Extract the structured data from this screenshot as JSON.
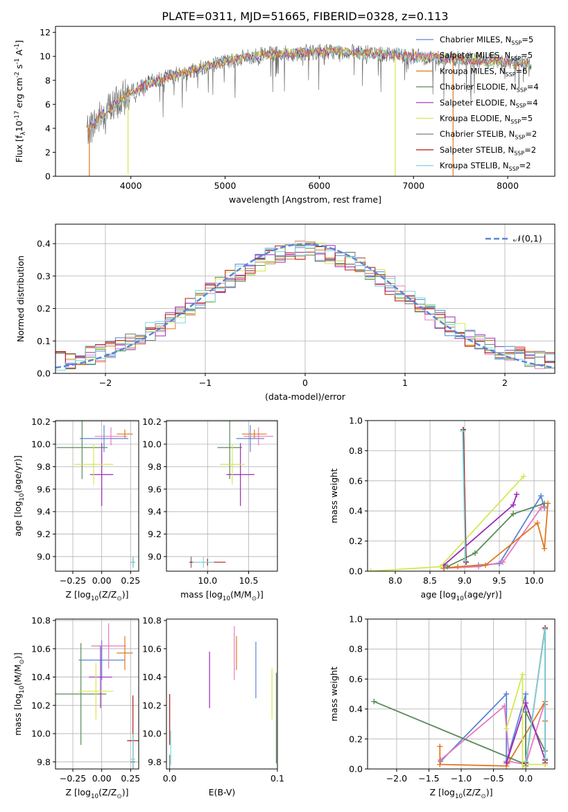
{
  "title": "PLATE=0311, MJD=51665, FIBERID=0328, z=0.113",
  "colors": {
    "chabrier_miles": "#5b84d6",
    "salpeter_miles": "#e878c0",
    "kroupa_miles": "#e07820",
    "chabrier_elodie": "#5a8a5a",
    "salpeter_elodie": "#9a28b8",
    "kroupa_elodie": "#d4e850",
    "chabrier_stelib": "#707070",
    "salpeter_stelib": "#b01818",
    "kroupa_stelib": "#7ad8e0",
    "normal_curve": "#5b84d6",
    "grid": "#b0b0b0"
  },
  "chart_data": [
    {
      "id": "spectrum",
      "type": "line",
      "xlabel": "wavelength [Angstrom, rest frame]",
      "ylabel": "Flux [f$_\\lambda$10$^{-17}$ erg cm$^{-2}$ s$^{-1}$ A$^{-1}$]",
      "xlim": [
        3200,
        8500
      ],
      "ylim": [
        0,
        12.5
      ],
      "xticks": [
        4000,
        5000,
        6000,
        7000,
        8000
      ],
      "yticks": [
        0,
        2,
        4,
        6,
        8,
        10,
        12
      ],
      "grid": false,
      "legend_position": "top-right",
      "continuum": {
        "x": [
          3530,
          3600,
          3700,
          3800,
          3900,
          4000,
          4200,
          4400,
          4600,
          4800,
          5000,
          5200,
          5400,
          5600,
          5800,
          6000,
          6200,
          6400,
          6600,
          6800,
          7000,
          7200,
          7400,
          7600,
          7800,
          8000,
          8250
        ],
        "y": [
          3.9,
          4.3,
          5.2,
          5.8,
          6.4,
          7.0,
          7.8,
          8.3,
          8.7,
          9.2,
          9.6,
          9.9,
          10.1,
          10.2,
          10.3,
          10.4,
          10.4,
          10.3,
          10.2,
          10.2,
          10.0,
          9.9,
          9.8,
          9.7,
          9.6,
          9.5,
          9.4
        ]
      },
      "series": [
        {
          "name": "Chabrier MILES, N$_{SSP}$=5",
          "color_key": "chabrier_miles"
        },
        {
          "name": "Salpeter MILES, N$_{SSP}$=5",
          "color_key": "salpeter_miles"
        },
        {
          "name": "Kroupa MILES, N$_{SSP}$=6",
          "color_key": "kroupa_miles"
        },
        {
          "name": "Chabrier ELODIE, N$_{SSP}$=4",
          "color_key": "chabrier_elodie"
        },
        {
          "name": "Salpeter ELODIE, N$_{SSP}$=4",
          "color_key": "salpeter_elodie"
        },
        {
          "name": "Kroupa ELODIE, N$_{SSP}$=5",
          "color_key": "kroupa_elodie"
        },
        {
          "name": "Chabrier STELIB, N$_{SSP}$=2",
          "color_key": "chabrier_stelib"
        },
        {
          "name": "Salpeter STELIB, N$_{SSP}$=2",
          "color_key": "salpeter_stelib"
        },
        {
          "name": "Kroupa STELIB, N$_{SSP}$=2",
          "color_key": "kroupa_stelib"
        }
      ]
    },
    {
      "id": "residuals",
      "type": "histogram",
      "xlabel": "(data-model)/error",
      "ylabel": "Normed distribution",
      "xlim": [
        -2.5,
        2.5
      ],
      "ylim": [
        0,
        0.46
      ],
      "xticks": [
        -2,
        -1,
        0,
        1,
        2
      ],
      "yticks": [
        0.0,
        0.1,
        0.2,
        0.3,
        0.4
      ],
      "grid": true,
      "legend_position": "top-right",
      "legend_label": "$\\mathcal{N}(0,1)$",
      "bin_width": 0.1,
      "bin_start": -2.5,
      "envelope": [
        0.02,
        0.025,
        0.03,
        0.04,
        0.045,
        0.05,
        0.06,
        0.065,
        0.07,
        0.08,
        0.09,
        0.1,
        0.11,
        0.13,
        0.14,
        0.16,
        0.18,
        0.2,
        0.21,
        0.23,
        0.25,
        0.27,
        0.29,
        0.31,
        0.33,
        0.35,
        0.36,
        0.37,
        0.38,
        0.37,
        0.36,
        0.36,
        0.35,
        0.34,
        0.34,
        0.33,
        0.33,
        0.32,
        0.31,
        0.3,
        0.29,
        0.28,
        0.27,
        0.26,
        0.25,
        0.24,
        0.23,
        0.22,
        0.2,
        0.18,
        0.17,
        0.16,
        0.14,
        0.13,
        0.12,
        0.11,
        0.1,
        0.09,
        0.08,
        0.07,
        0.06,
        0.06,
        0.05,
        0.05,
        0.04,
        0.04,
        0.04,
        0.03,
        0.03,
        0.03,
        0.03,
        0.02,
        0.02,
        0.02,
        0.02,
        0.02,
        0.02,
        0.02,
        0.02,
        0.02,
        0.02,
        0.02,
        0.02,
        0.02,
        0.02,
        0.02,
        0.02,
        0.02,
        0.02,
        0.02,
        0.02,
        0.02,
        0.02,
        0.02,
        0.02,
        0.02,
        0.02,
        0.02,
        0.02,
        0.02
      ]
    },
    {
      "id": "z-age",
      "type": "errorbar",
      "xlabel": "Z [log$_{10}$(Z/Z$_\\odot$)]",
      "ylabel": "age  [log$_{10}$(age/yr)]",
      "xlim": [
        -0.4,
        0.32
      ],
      "ylim": [
        8.87,
        10.21
      ],
      "xticks": [
        -0.25,
        0.0,
        0.25
      ],
      "xtick_labels": [
        "−0.25",
        "0.00",
        "0.25"
      ],
      "yticks": [
        9.0,
        9.2,
        9.4,
        9.6,
        9.8,
        10.0,
        10.2
      ],
      "grid": true,
      "points": [
        {
          "color_key": "chabrier_miles",
          "x": 0.02,
          "xerr": 0.21,
          "y": 10.05,
          "yerr": 0.12
        },
        {
          "color_key": "salpeter_miles",
          "x": 0.08,
          "xerr": 0.14,
          "y": 10.07,
          "yerr": 0.08
        },
        {
          "color_key": "kroupa_miles",
          "x": 0.2,
          "xerr": 0.07,
          "y": 10.09,
          "yerr": 0.04
        },
        {
          "color_key": "chabrier_elodie",
          "x": -0.17,
          "xerr": 0.22,
          "y": 9.97,
          "yerr": 0.28
        },
        {
          "color_key": "salpeter_elodie",
          "x": 0.0,
          "xerr": 0.1,
          "y": 9.73,
          "yerr": 0.28
        },
        {
          "color_key": "kroupa_elodie",
          "x": -0.07,
          "xerr": 0.17,
          "y": 9.82,
          "yerr": 0.18
        },
        {
          "color_key": "chabrier_stelib",
          "x": 0.27,
          "xerr": 0.02,
          "y": 8.95,
          "yerr": 0.05
        },
        {
          "color_key": "salpeter_stelib",
          "x": 0.27,
          "xerr": 0.01,
          "y": 8.95,
          "yerr": 0.03
        },
        {
          "color_key": "kroupa_stelib",
          "x": 0.27,
          "xerr": 0.02,
          "y": 8.95,
          "yerr": 0.05
        }
      ]
    },
    {
      "id": "mass-age",
      "type": "errorbar",
      "xlabel": "mass [log$_{10}$(M/M$_\\odot$)]",
      "ylabel": "",
      "xlim": [
        9.5,
        10.85
      ],
      "ylim": [
        8.87,
        10.21
      ],
      "xticks": [
        10.0,
        10.5
      ],
      "yticks": [
        9.0,
        9.2,
        9.4,
        9.6,
        9.8,
        10.0,
        10.2
      ],
      "grid": true,
      "points": [
        {
          "color_key": "chabrier_miles",
          "x": 10.52,
          "xerr": 0.17,
          "y": 10.05,
          "yerr": 0.12
        },
        {
          "color_key": "salpeter_miles",
          "x": 10.62,
          "xerr": 0.18,
          "y": 10.07,
          "yerr": 0.08
        },
        {
          "color_key": "kroupa_miles",
          "x": 10.57,
          "xerr": 0.15,
          "y": 10.09,
          "yerr": 0.04
        },
        {
          "color_key": "chabrier_elodie",
          "x": 10.27,
          "xerr": 0.15,
          "y": 9.97,
          "yerr": 0.28
        },
        {
          "color_key": "salpeter_elodie",
          "x": 10.4,
          "xerr": 0.17,
          "y": 9.73,
          "yerr": 0.28
        },
        {
          "color_key": "kroupa_elodie",
          "x": 10.3,
          "xerr": 0.15,
          "y": 9.82,
          "yerr": 0.18
        },
        {
          "color_key": "chabrier_stelib",
          "x": 9.8,
          "xerr": 0.02,
          "y": 8.95,
          "yerr": 0.05
        },
        {
          "color_key": "salpeter_stelib",
          "x": 10.0,
          "xerr": 0.22,
          "y": 8.95,
          "yerr": 0.03
        },
        {
          "color_key": "kroupa_stelib",
          "x": 9.95,
          "xerr": 0.13,
          "y": 8.95,
          "yerr": 0.05
        }
      ]
    },
    {
      "id": "age-weight",
      "type": "line",
      "xlabel": "age  [log$_{10}$(age/yr)]",
      "ylabel": "mass weight",
      "xlim": [
        7.6,
        10.3
      ],
      "ylim": [
        0,
        1.0
      ],
      "xticks": [
        8.0,
        8.5,
        9.0,
        9.5,
        10.0
      ],
      "yticks": [
        0.0,
        0.2,
        0.4,
        0.6,
        0.8,
        1.0
      ],
      "grid": true,
      "series": [
        {
          "color_key": "chabrier_miles",
          "x": [
            8.7,
            9.2,
            9.5,
            10.1,
            10.15
          ],
          "y": [
            0.02,
            0.04,
            0.05,
            0.5,
            0.42
          ]
        },
        {
          "color_key": "salpeter_miles",
          "x": [
            8.7,
            9.2,
            9.55,
            10.1,
            10.15
          ],
          "y": [
            0.02,
            0.03,
            0.06,
            0.42,
            0.43
          ]
        },
        {
          "color_key": "kroupa_miles",
          "x": [
            8.7,
            8.9,
            9.3,
            10.05,
            10.15,
            10.2
          ],
          "y": [
            0.02,
            0.03,
            0.04,
            0.32,
            0.15,
            0.45
          ]
        },
        {
          "color_key": "chabrier_elodie",
          "x": [
            8.75,
            9.15,
            9.7,
            10.15
          ],
          "y": [
            0.03,
            0.12,
            0.38,
            0.45
          ]
        },
        {
          "color_key": "salpeter_elodie",
          "x": [
            8.7,
            9.7,
            9.75
          ],
          "y": [
            0.04,
            0.44,
            0.51
          ]
        },
        {
          "color_key": "kroupa_elodie",
          "x": [
            7.65,
            8.65,
            9.85
          ],
          "y": [
            0.0,
            0.03,
            0.63
          ]
        },
        {
          "color_key": "chabrier_stelib",
          "x": [
            8.98,
            9.02
          ],
          "y": [
            0.94,
            0.06
          ]
        },
        {
          "color_key": "salpeter_stelib",
          "x": [
            8.98,
            9.02
          ],
          "y": [
            0.94,
            0.06
          ]
        },
        {
          "color_key": "kroupa_stelib",
          "x": [
            8.97,
            9.01
          ],
          "y": [
            0.93,
            0.07
          ]
        }
      ]
    },
    {
      "id": "z-mass",
      "type": "errorbar",
      "xlabel": "Z [log$_{10}$(Z/Z$_\\odot$)]",
      "ylabel": "mass [log$_{10}$(M/M$_\\odot$)]",
      "xlim": [
        -0.4,
        0.32
      ],
      "ylim": [
        9.75,
        10.81
      ],
      "xticks": [
        -0.25,
        0.0,
        0.25
      ],
      "xtick_labels": [
        "−0.25",
        "0.00",
        "0.25"
      ],
      "yticks": [
        9.8,
        10.0,
        10.2,
        10.4,
        10.6,
        10.8
      ],
      "grid": true,
      "points": [
        {
          "color_key": "chabrier_miles",
          "x": 0.0,
          "xerr": 0.2,
          "y": 10.52,
          "yerr": 0.14
        },
        {
          "color_key": "salpeter_miles",
          "x": 0.06,
          "xerr": 0.15,
          "y": 10.62,
          "yerr": 0.16
        },
        {
          "color_key": "kroupa_miles",
          "x": 0.2,
          "xerr": 0.07,
          "y": 10.57,
          "yerr": 0.12
        },
        {
          "color_key": "chabrier_elodie",
          "x": -0.18,
          "xerr": 0.22,
          "y": 10.28,
          "yerr": 0.36
        },
        {
          "color_key": "salpeter_elodie",
          "x": -0.01,
          "xerr": 0.1,
          "y": 10.4,
          "yerr": 0.22
        },
        {
          "color_key": "kroupa_elodie",
          "x": -0.05,
          "xerr": 0.15,
          "y": 10.3,
          "yerr": 0.2
        },
        {
          "color_key": "chabrier_stelib",
          "x": 0.27,
          "xerr": 0.02,
          "y": 9.8,
          "yerr": 0.2
        },
        {
          "color_key": "salpeter_stelib",
          "x": 0.27,
          "xerr": 0.05,
          "y": 9.95,
          "yerr": 0.32
        },
        {
          "color_key": "kroupa_stelib",
          "x": 0.27,
          "xerr": 0.02,
          "y": 9.82,
          "yerr": 0.18
        }
      ]
    },
    {
      "id": "ebv-mass",
      "type": "errorbar",
      "xlabel": "E(B-V)",
      "ylabel": "",
      "xlim": [
        -0.003,
        0.1
      ],
      "ylim": [
        9.75,
        10.81
      ],
      "xticks": [
        0.0,
        0.1
      ],
      "yticks": [
        9.8,
        10.0,
        10.2,
        10.4,
        10.6,
        10.8
      ],
      "grid": false,
      "points": [
        {
          "color_key": "chabrier_miles",
          "x": 0.08,
          "xerr": 0.0,
          "y": 10.45,
          "yerr": 0.2
        },
        {
          "color_key": "salpeter_miles",
          "x": 0.06,
          "xerr": 0.0,
          "y": 10.57,
          "yerr": 0.19
        },
        {
          "color_key": "kroupa_miles",
          "x": 0.062,
          "xerr": 0.0,
          "y": 10.57,
          "yerr": 0.12
        },
        {
          "color_key": "chabrier_elodie",
          "x": 0.099,
          "xerr": 0.0,
          "y": 10.11,
          "yerr": 0.32
        },
        {
          "color_key": "salpeter_elodie",
          "x": 0.037,
          "xerr": 0.0,
          "y": 10.38,
          "yerr": 0.2
        },
        {
          "color_key": "kroupa_elodie",
          "x": 0.095,
          "xerr": 0.0,
          "y": 10.28,
          "yerr": 0.18
        },
        {
          "color_key": "chabrier_stelib",
          "x": 0.0,
          "xerr": 0.0,
          "y": 9.8,
          "yerr": 0.05
        },
        {
          "color_key": "salpeter_stelib",
          "x": 0.0,
          "xerr": 0.0,
          "y": 10.1,
          "yerr": 0.18
        },
        {
          "color_key": "kroupa_stelib",
          "x": 0.001,
          "xerr": 0.0,
          "y": 9.9,
          "yerr": 0.12
        }
      ]
    },
    {
      "id": "z-weight",
      "type": "line",
      "xlabel": "Z [log$_{10}$(Z/Z$_\\odot$)]",
      "ylabel": "mass weight",
      "xlim": [
        -2.45,
        0.45
      ],
      "ylim": [
        0,
        1.0
      ],
      "xticks": [
        -2.0,
        -1.5,
        -1.0,
        -0.5,
        0.0
      ],
      "xtick_labels": [
        "−2.0",
        "−1.5",
        "−1.0",
        "−0.5",
        "0.0"
      ],
      "yticks": [
        0.0,
        0.2,
        0.4,
        0.6,
        0.8,
        1.0
      ],
      "grid": true,
      "series": [
        {
          "color_key": "chabrier_miles",
          "x": [
            -1.32,
            -0.3,
            -0.3,
            0.0,
            0.0
          ],
          "y": [
            0.05,
            0.5,
            0.05,
            0.5,
            0.02
          ]
        },
        {
          "color_key": "salpeter_miles",
          "x": [
            -1.32,
            -0.33,
            -0.25,
            0.0,
            0.3
          ],
          "y": [
            0.06,
            0.42,
            0.05,
            0.03,
            0.45
          ]
        },
        {
          "color_key": "kroupa_miles",
          "x": [
            -1.33,
            -1.33,
            -0.3,
            0.3,
            0.3,
            0.3,
            0.3
          ],
          "y": [
            0.15,
            0.03,
            0.02,
            0.45,
            0.43,
            0.32,
            0.03
          ]
        },
        {
          "color_key": "chabrier_elodie",
          "x": [
            -2.35,
            0.0,
            0.0,
            0.3
          ],
          "y": [
            0.45,
            0.03,
            0.38,
            0.12
          ]
        },
        {
          "color_key": "salpeter_elodie",
          "x": [
            -0.3,
            0.0,
            0.3,
            0.3
          ],
          "y": [
            0.04,
            0.44,
            0.06,
            0.04
          ]
        },
        {
          "color_key": "kroupa_elodie",
          "x": [
            -0.3,
            -0.05,
            -0.05,
            0.0,
            0.3
          ],
          "y": [
            0.27,
            0.63,
            0.0,
            0.03,
            0.03
          ]
        },
        {
          "color_key": "chabrier_stelib",
          "x": [
            0.0,
            0.3,
            0.3
          ],
          "y": [
            0.04,
            0.94,
            0.06
          ]
        },
        {
          "color_key": "salpeter_stelib",
          "x": [
            0.0,
            0.3,
            0.3
          ],
          "y": [
            0.04,
            0.94,
            0.06
          ]
        },
        {
          "color_key": "kroupa_stelib",
          "x": [
            0.0,
            0.3,
            0.3
          ],
          "y": [
            0.05,
            0.93,
            0.07
          ]
        }
      ]
    }
  ]
}
